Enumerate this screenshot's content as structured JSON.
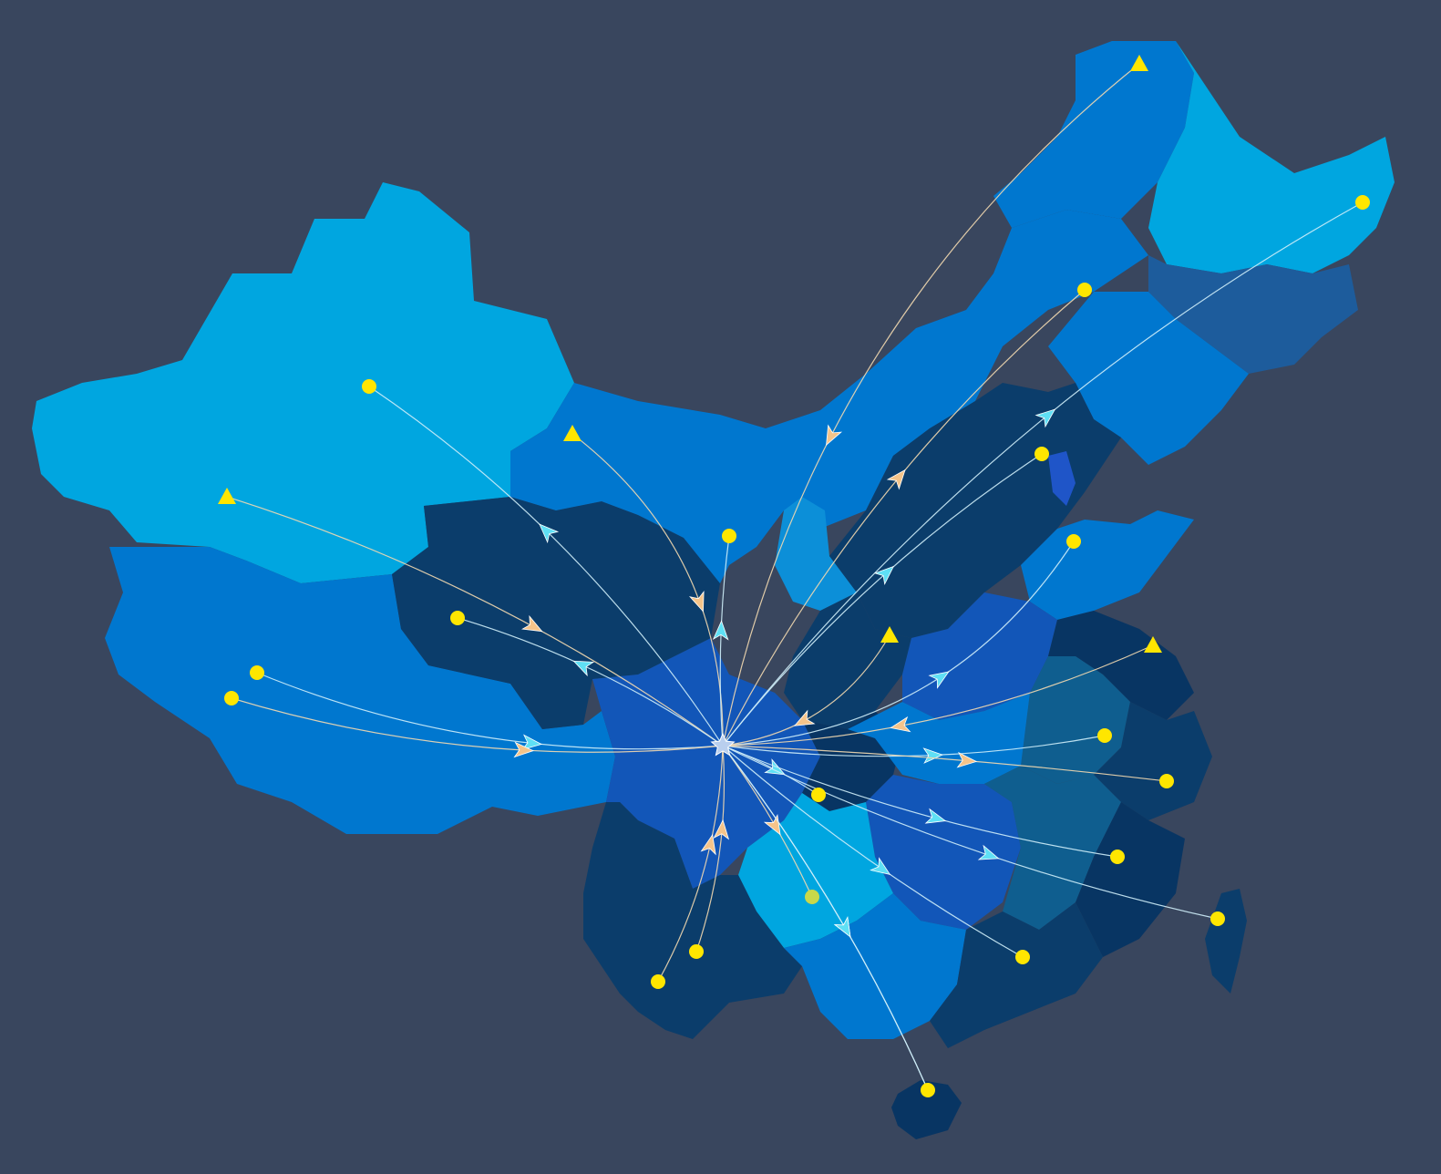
{
  "colors": {
    "background": "#39465e",
    "light": "#00a6e0",
    "mid": "#0077cf",
    "royal": "#1256b8",
    "navy": "#0b3d6b",
    "deep": "#083563",
    "slate": "#1d5c9c",
    "teal": "#0f5e8f",
    "marker": "#ffe600",
    "marker_alt": "#c8d84a",
    "hub": "#b9cfee",
    "cyan": "#5fe0f5",
    "orange": "#f5c48a"
  },
  "hub": {
    "name": "hub-star-icon"
  },
  "routes": [
    {
      "id": "r-heilongjiang-north",
      "marker": "triangle",
      "direction": "to_hub",
      "tone": "orange"
    },
    {
      "id": "r-heilongjiang-east",
      "marker": "dot",
      "direction": "to_marker",
      "tone": "cyan"
    },
    {
      "id": "r-jilin",
      "marker": "dot",
      "direction": "to_marker",
      "tone": "orange"
    },
    {
      "id": "r-beijing",
      "marker": "dot",
      "direction": "to_marker",
      "tone": "cyan"
    },
    {
      "id": "r-shandong",
      "marker": "dot",
      "direction": "to_marker",
      "tone": "cyan"
    },
    {
      "id": "r-xinjiang-north",
      "marker": "dot",
      "direction": "to_marker",
      "tone": "cyan"
    },
    {
      "id": "r-xinjiang-west",
      "marker": "triangle",
      "direction": "to_hub",
      "tone": "orange"
    },
    {
      "id": "r-gansu",
      "marker": "triangle",
      "direction": "to_hub",
      "tone": "orange"
    },
    {
      "id": "r-ningxia",
      "marker": "dot",
      "direction": "to_marker",
      "tone": "cyan"
    },
    {
      "id": "r-qinghai",
      "marker": "dot",
      "direction": "to_marker",
      "tone": "cyan"
    },
    {
      "id": "r-tibet-1",
      "marker": "dot",
      "direction": "to_hub",
      "tone": "cyan"
    },
    {
      "id": "r-tibet-2",
      "marker": "dot",
      "direction": "to_hub",
      "tone": "orange"
    },
    {
      "id": "r-henan",
      "marker": "triangle",
      "direction": "to_hub",
      "tone": "orange"
    },
    {
      "id": "r-jiangsu",
      "marker": "triangle",
      "direction": "to_hub",
      "tone": "orange"
    },
    {
      "id": "r-anhui",
      "marker": "dot",
      "direction": "to_marker",
      "tone": "cyan"
    },
    {
      "id": "r-zhejiang",
      "marker": "dot",
      "direction": "to_marker",
      "tone": "orange"
    },
    {
      "id": "r-hubei",
      "marker": "dot",
      "direction": "to_marker",
      "tone": "cyan"
    },
    {
      "id": "r-jiangxi",
      "marker": "dot",
      "direction": "to_marker",
      "tone": "cyan"
    },
    {
      "id": "r-fujian",
      "marker": "dot",
      "direction": "to_marker",
      "tone": "cyan"
    },
    {
      "id": "r-taiwan",
      "marker": "dot",
      "direction": "to_marker",
      "tone": "cyan"
    },
    {
      "id": "r-guangdong",
      "marker": "dot",
      "direction": "to_marker",
      "tone": "orange"
    },
    {
      "id": "r-guizhou",
      "marker": "dot",
      "direction": "to_hub",
      "tone": "orange"
    },
    {
      "id": "r-yunnan-1",
      "marker": "dot",
      "direction": "to_hub",
      "tone": "orange"
    },
    {
      "id": "r-yunnan-2",
      "marker": "dot",
      "direction": "to_marker",
      "tone": "cyan"
    },
    {
      "id": "r-hainan",
      "marker": "dot",
      "direction": "to_marker",
      "tone": "cyan"
    }
  ]
}
